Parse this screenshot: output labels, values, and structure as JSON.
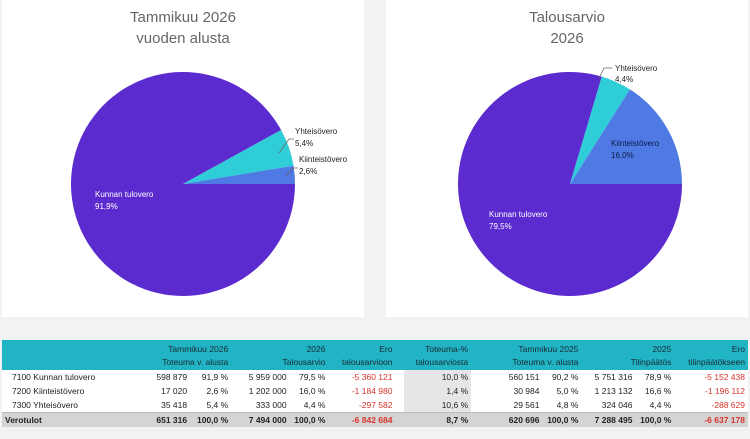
{
  "charts": {
    "left": {
      "title_line1": "Tammikuu 2026",
      "title_line2": "vuoden alusta",
      "slices": [
        {
          "name": "Kunnan tulovero",
          "pct_label": "91,9%",
          "value": 91.9,
          "color": "#5b2bcf"
        },
        {
          "name": "Yhteisövero",
          "pct_label": "5,4%",
          "value": 5.4,
          "color": "#2ecdd7"
        },
        {
          "name": "Kiinteistövero",
          "pct_label": "2,6%",
          "value": 2.6,
          "color": "#4f7ae3"
        }
      ]
    },
    "right": {
      "title_line1": "Talousarvio",
      "title_line2": "2026",
      "slices": [
        {
          "name": "Kunnan tulovero",
          "pct_label": "79,5%",
          "value": 79.5,
          "color": "#5b2bcf"
        },
        {
          "name": "Yhteisövero",
          "pct_label": "4,4%",
          "value": 4.4,
          "color": "#2ecdd7"
        },
        {
          "name": "Kiinteistövero",
          "pct_label": "16,0%",
          "value": 16.0,
          "color": "#4f7ae3"
        }
      ]
    }
  },
  "chart_data": [
    {
      "type": "pie",
      "title": "Tammikuu 2026 vuoden alusta",
      "categories": [
        "Kunnan tulovero",
        "Yhteisövero",
        "Kiinteistövero"
      ],
      "values": [
        91.9,
        5.4,
        2.6
      ]
    },
    {
      "type": "pie",
      "title": "Talousarvio 2026",
      "categories": [
        "Kunnan tulovero",
        "Yhteisövero",
        "Kiinteistövero"
      ],
      "values": [
        79.5,
        4.4,
        16.0
      ]
    }
  ],
  "table": {
    "headers_top": {
      "tammikuu": "Tammikuu 2026",
      "budget_year": "2026",
      "ero": "Ero",
      "toteuma_pct": "Toteuma-%",
      "tammikuu_prev": "Tammikuu 2025",
      "prev_year": "2025",
      "ero2": "Ero"
    },
    "headers_bottom": {
      "toteuma": "Toteuma v. alusta",
      "talousarvio": "Talousarvio",
      "ero_ta": "talousarvioon",
      "ta_pct": "talousarviosta",
      "toteuma_prev": "Toteuma v. alusta",
      "tilinpaatos": "Tilinpäätös",
      "ero_tp": "tilinpäätökseen"
    },
    "rows": [
      {
        "name": "7100 Kunnan tulovero",
        "act": "598 879",
        "act_pct": "91,9 %",
        "bud": "5 959 000",
        "bud_pct": "79,5 %",
        "diff": "-5 360 121",
        "real_pct": "10,0 %",
        "prev": "560 151",
        "prev_pct": "90,2 %",
        "tp": "5 751 316",
        "tp_pct": "78,9 %",
        "tp_diff": "-5 152 438"
      },
      {
        "name": "7200 Kiinteistövero",
        "act": "17 020",
        "act_pct": "2,6 %",
        "bud": "1 202 000",
        "bud_pct": "16,0 %",
        "diff": "-1 184 980",
        "real_pct": "1,4 %",
        "prev": "30 984",
        "prev_pct": "5,0 %",
        "tp": "1 213 132",
        "tp_pct": "16,6 %",
        "tp_diff": "-1 196 112"
      },
      {
        "name": "7300 Yhteisövero",
        "act": "35 418",
        "act_pct": "5,4 %",
        "bud": "333 000",
        "bud_pct": "4,4 %",
        "diff": "-297 582",
        "real_pct": "10,6 %",
        "prev": "29 561",
        "prev_pct": "4,8 %",
        "tp": "324 046",
        "tp_pct": "4,4 %",
        "tp_diff": "-288 629"
      }
    ],
    "total": {
      "name": "Verotulot",
      "act": "651 316",
      "act_pct": "100,0 %",
      "bud": "7 494 000",
      "bud_pct": "100,0 %",
      "diff": "-6 842 684",
      "real_pct": "8,7 %",
      "prev": "620 696",
      "prev_pct": "100,0 %",
      "tp": "7 288 495",
      "tp_pct": "100,0 %",
      "tp_diff": "-6 637 178"
    }
  }
}
